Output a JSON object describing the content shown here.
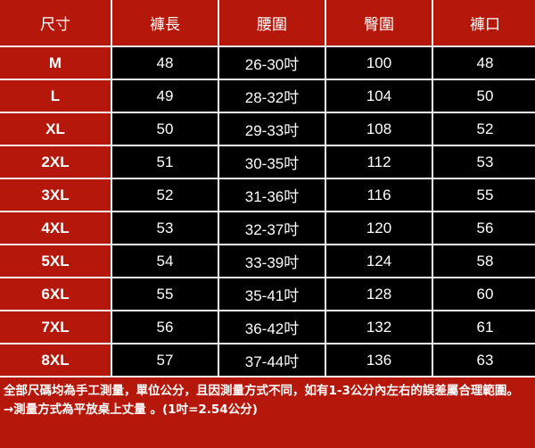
{
  "headers": [
    "尺寸",
    "褲長",
    "腰圍",
    "臀圍",
    "褲口"
  ],
  "rows": [
    [
      "M",
      "48",
      "26-30吋",
      "100",
      "48"
    ],
    [
      "L",
      "49",
      "28-32吋",
      "104",
      "50"
    ],
    [
      "XL",
      "50",
      "29-33吋",
      "108",
      "52"
    ],
    [
      "2XL",
      "51",
      "30-35吋",
      "112",
      "53"
    ],
    [
      "3XL",
      "52",
      "31-36吋",
      "116",
      "55"
    ],
    [
      "4XL",
      "53",
      "32-37吋",
      "120",
      "56"
    ],
    [
      "5XL",
      "54",
      "33-39吋",
      "124",
      "58"
    ],
    [
      "6XL",
      "55",
      "35-41吋",
      "128",
      "60"
    ],
    [
      "7XL",
      "56",
      "36-42吋",
      "132",
      "61"
    ],
    [
      "8XL",
      "57",
      "37-44吋",
      "136",
      "63"
    ]
  ],
  "notes": {
    "line1": "全部尺碼均為手工測量，單位公分，且因測量方式不同，如有1-3公分內左右的誤差屬合理範圍。",
    "line2": "→測量方式為平放桌上丈量 。(1吋=2.54公分)"
  },
  "colors": {
    "header_bg": "#b5180b",
    "value_bg": "#000000",
    "grid_line": "#f2f2f2"
  }
}
